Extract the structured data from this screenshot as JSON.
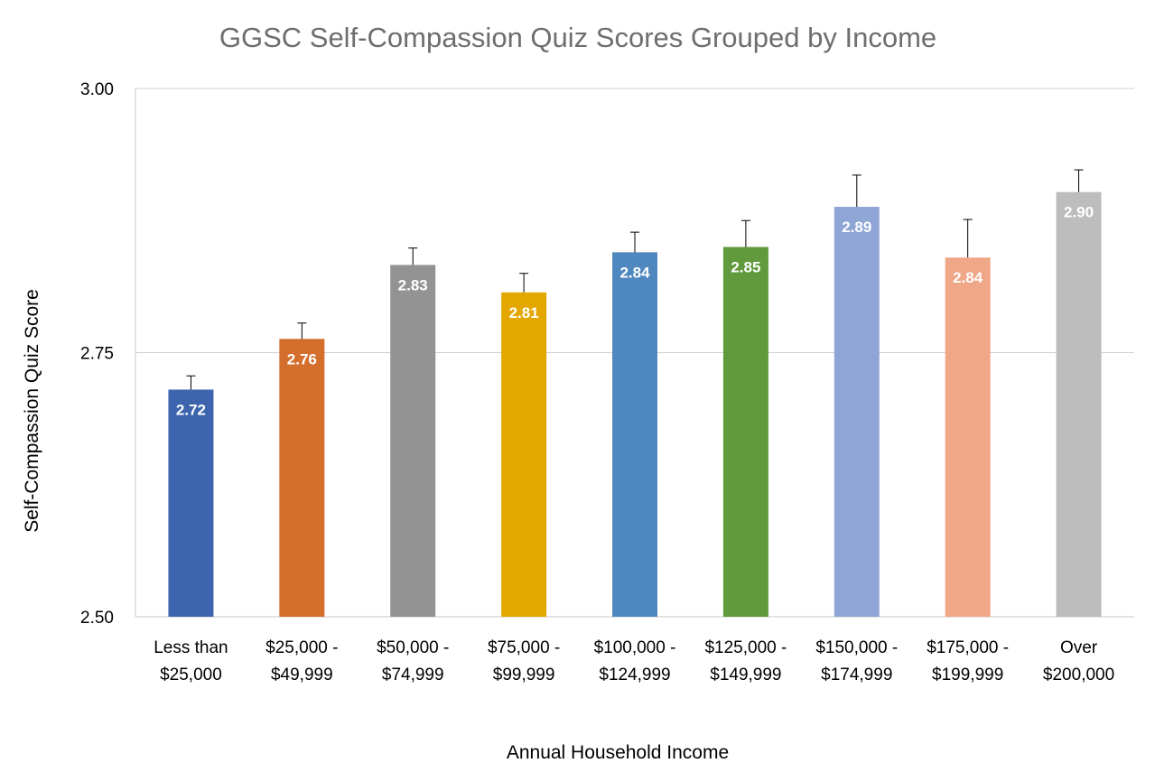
{
  "chart_data": {
    "type": "bar",
    "title": "GGSC Self-Compassion Quiz Scores Grouped by Income",
    "xlabel": "Annual Household Income",
    "ylabel": "Self-Compassion Quiz Score",
    "ylim": [
      2.5,
      3.0
    ],
    "yticks": [
      "2.50",
      "2.75",
      "3.00"
    ],
    "grid": true,
    "legend": "none",
    "categories": [
      [
        "Less than",
        "$25,000"
      ],
      [
        "$25,000 -",
        "$49,999"
      ],
      [
        "$50,000 -",
        "$74,999"
      ],
      [
        "$75,000 -",
        "$99,999"
      ],
      [
        "$100,000 -",
        "$124,999"
      ],
      [
        "$125,000 -",
        "$149,999"
      ],
      [
        "$150,000 -",
        "$174,999"
      ],
      [
        "$175,000 -",
        "$199,999"
      ],
      [
        "Over",
        "$200,000"
      ]
    ],
    "values": [
      2.715,
      2.763,
      2.833,
      2.807,
      2.845,
      2.85,
      2.888,
      2.84,
      2.902
    ],
    "labels": [
      "2.72",
      "2.76",
      "2.83",
      "2.81",
      "2.84",
      "2.85",
      "2.89",
      "2.84",
      "2.90"
    ],
    "error_upper": [
      0.013,
      0.015,
      0.016,
      0.018,
      0.019,
      0.025,
      0.03,
      0.036,
      0.021
    ],
    "colors": [
      "#3d65ad",
      "#d36e2c",
      "#939393",
      "#e3a700",
      "#4f88be",
      "#619a3d",
      "#8fa5d6",
      "#f0a787",
      "#bdbdbd"
    ]
  }
}
